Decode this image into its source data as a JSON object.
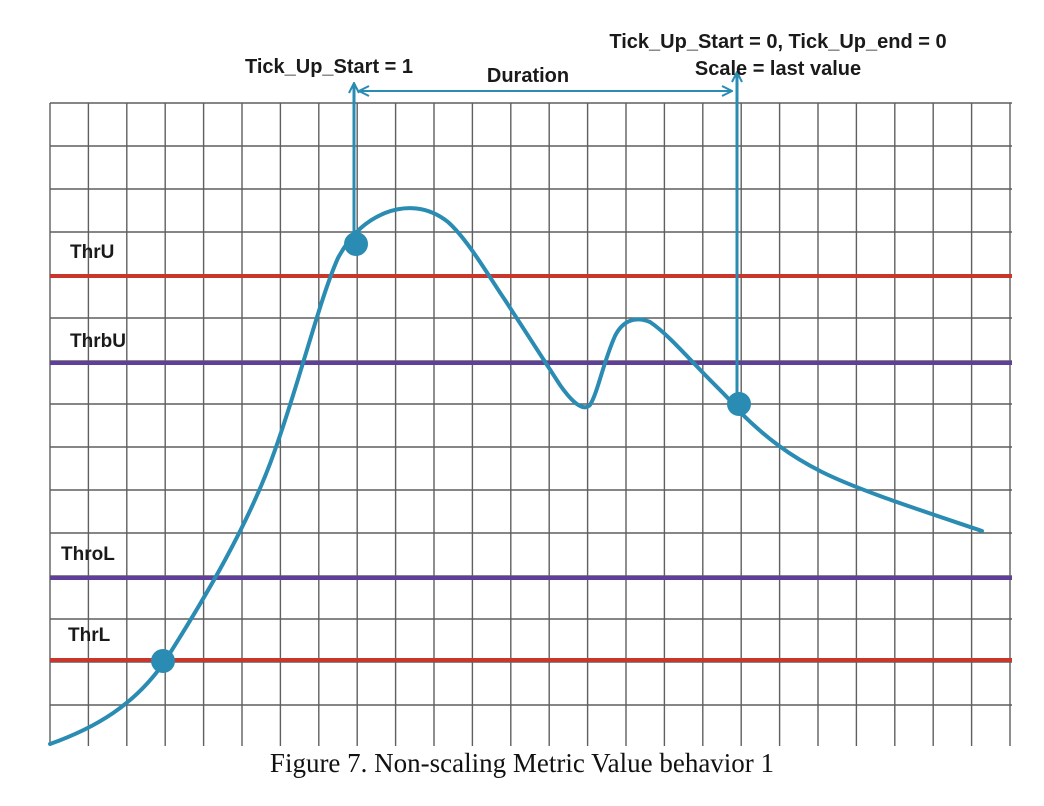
{
  "colors": {
    "grid": "#5f5f5f",
    "curve": "#2a8bb3",
    "marker": "#2a8bb3",
    "arrow": "#2a8bb3",
    "threshold_outer": "#c9372c",
    "threshold_inner": "#5f3f9a"
  },
  "annotations": {
    "tick_up_start_1": "Tick_Up_Start = 1",
    "duration": "Duration",
    "tick_up_end_line1": "Tick_Up_Start = 0, Tick_Up_end = 0",
    "tick_up_end_line2": "Scale = last value"
  },
  "thresholds": [
    {
      "label": "ThrU",
      "kind": "outer"
    },
    {
      "label": "ThrbU",
      "kind": "inner"
    },
    {
      "label": "ThroL",
      "kind": "inner"
    },
    {
      "label": "ThrL",
      "kind": "outer"
    }
  ],
  "caption": "Figure 7. Non-scaling Metric Value behavior 1"
}
